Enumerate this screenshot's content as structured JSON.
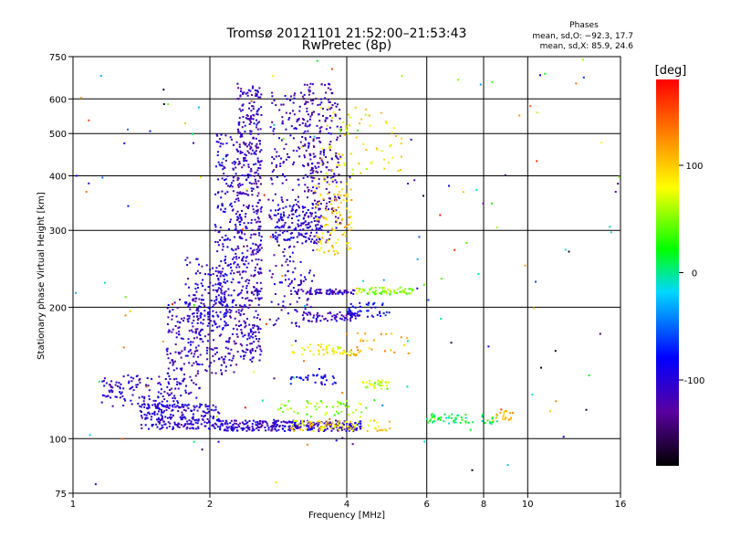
{
  "chart_data": {
    "type": "scatter",
    "title": "Tromsø 20121101 21:52:00–21:53:43",
    "subtitle": "RwPretec (8p)",
    "xlabel": "Frequency [MHz]",
    "ylabel": "Stationary phase Virtual Height [km]",
    "x_scale": "log",
    "y_scale": "log",
    "xlim": [
      1,
      16
    ],
    "ylim": [
      75,
      750
    ],
    "x_ticks": [
      1,
      2,
      4,
      6,
      8,
      10,
      16
    ],
    "y_ticks": [
      75,
      100,
      200,
      300,
      400,
      500,
      600,
      750
    ],
    "grid": true,
    "stats": {
      "heading": "Phases",
      "line_o": "mean, sd,O: −92.3, 17.7",
      "line_x": "mean, sd,X:  85.9, 24.6"
    },
    "colorbar": {
      "label": "[deg]",
      "range": [
        -180,
        180
      ],
      "ticks": [
        100,
        0,
        -100
      ],
      "colormap": "rainbow"
    },
    "clusters": [
      {
        "f": [
          1.4,
          2.1
        ],
        "h": [
          105,
          120
        ],
        "phase": -100,
        "n": 240
      },
      {
        "f": [
          2.1,
          4.3
        ],
        "h": [
          104,
          110
        ],
        "phase": -105,
        "n": 300
      },
      {
        "f": [
          3.0,
          5.0
        ],
        "h": [
          104,
          110
        ],
        "phase": 90,
        "n": 90
      },
      {
        "f": [
          6.0,
          8.6
        ],
        "h": [
          108,
          114
        ],
        "phase": 10,
        "n": 60
      },
      {
        "f": [
          8.3,
          9.3
        ],
        "h": [
          110,
          116
        ],
        "phase": 110,
        "n": 20
      },
      {
        "f": [
          1.15,
          1.9
        ],
        "h": [
          118,
          140
        ],
        "phase": -105,
        "n": 150
      },
      {
        "f": [
          1.6,
          2.3
        ],
        "h": [
          140,
          210
        ],
        "phase": -110,
        "n": 260
      },
      {
        "f": [
          1.75,
          2.2
        ],
        "h": [
          180,
          260
        ],
        "phase": -100,
        "n": 120
      },
      {
        "f": [
          2.3,
          2.6
        ],
        "h": [
          150,
          650
        ],
        "phase": -110,
        "n": 520
      },
      {
        "f": [
          2.05,
          2.3
        ],
        "h": [
          200,
          500
        ],
        "phase": -100,
        "n": 170
      },
      {
        "f": [
          2.7,
          3.4
        ],
        "h": [
          180,
          620
        ],
        "phase": -110,
        "n": 260
      },
      {
        "f": [
          3.2,
          3.9
        ],
        "h": [
          280,
          650
        ],
        "phase": -115,
        "n": 260
      },
      {
        "f": [
          2.75,
          3.5
        ],
        "h": [
          280,
          340
        ],
        "phase": -95,
        "n": 110
      },
      {
        "f": [
          3.4,
          4.1
        ],
        "h": [
          260,
          400
        ],
        "phase": 100,
        "n": 110
      },
      {
        "f": [
          3.5,
          5.3
        ],
        "h": [
          400,
          580
        ],
        "phase": 85,
        "n": 70
      },
      {
        "f": [
          3.0,
          4.2
        ],
        "h": [
          214,
          220
        ],
        "phase": -110,
        "n": 70
      },
      {
        "f": [
          4.2,
          5.6
        ],
        "h": [
          214,
          222
        ],
        "phase": 50,
        "n": 60
      },
      {
        "f": [
          3.2,
          4.3
        ],
        "h": [
          185,
          195
        ],
        "phase": -110,
        "n": 70
      },
      {
        "f": [
          4.0,
          5.0
        ],
        "h": [
          190,
          205
        ],
        "phase": -80,
        "n": 40
      },
      {
        "f": [
          3.0,
          4.2
        ],
        "h": [
          155,
          165
        ],
        "phase": 80,
        "n": 50
      },
      {
        "f": [
          3.0,
          3.8
        ],
        "h": [
          133,
          140
        ],
        "phase": -90,
        "n": 35
      },
      {
        "f": [
          4.3,
          5.0
        ],
        "h": [
          130,
          136
        ],
        "phase": 60,
        "n": 30
      },
      {
        "f": [
          2.8,
          4.5
        ],
        "h": [
          112,
          122
        ],
        "phase": 50,
        "n": 50
      },
      {
        "f": [
          4.0,
          5.5
        ],
        "h": [
          155,
          175
        ],
        "phase": 110,
        "n": 30
      },
      {
        "f": [
          1.0,
          16.0
        ],
        "h": [
          78,
          740
        ],
        "phase": 0,
        "n": 150
      }
    ]
  }
}
